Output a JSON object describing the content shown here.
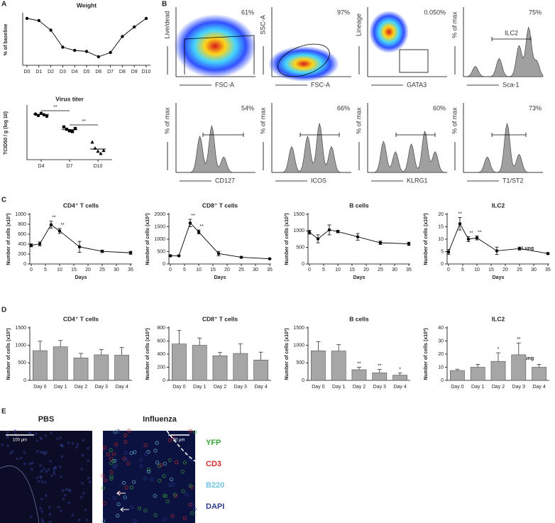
{
  "panel_labels": [
    "A",
    "B",
    "C",
    "D",
    "E"
  ],
  "side_labels": [
    "Lung",
    "Lung"
  ],
  "flow_plots": [
    {
      "y_label": "Live/dead",
      "x_label": "FSC-A",
      "percent": "61%"
    },
    {
      "y_label": "SSC-A",
      "x_label": "FSC-A",
      "percent": "97%"
    },
    {
      "y_label": "Lineage",
      "x_label": "GATA3",
      "percent": "0.050%"
    },
    {
      "y_label": "% of max",
      "x_label": "Sca-1",
      "percent": "75%",
      "gate": "ILC2"
    },
    {
      "y_label": "% of max",
      "x_label": "CD127",
      "percent": "54%"
    },
    {
      "y_label": "% of max",
      "x_label": "ICOS",
      "percent": "66%"
    },
    {
      "y_label": "% of max",
      "x_label": "KLRG1",
      "percent": "60%"
    },
    {
      "y_label": "% of max",
      "x_label": "T1/ST2",
      "percent": "73%"
    }
  ],
  "microscopy": {
    "titles": [
      "PBS",
      "Influenza"
    ],
    "scale_bars": [
      "100 μm",
      "50 μm"
    ],
    "channels": [
      {
        "name": "YFP",
        "color": "#3aa63a"
      },
      {
        "name": "CD3",
        "color": "#d42a2a"
      },
      {
        "name": "B220",
        "color": "#6fc3e6"
      },
      {
        "name": "DAPI",
        "color": "#2e3d8f"
      }
    ]
  },
  "chart_data": [
    {
      "type": "line",
      "title": "Weight",
      "ylabel": "% of baseline",
      "color": "#000000",
      "categories": [
        "D0",
        "D1",
        "D2",
        "D3",
        "D4",
        "D5",
        "D6",
        "D7",
        "D8",
        "D9",
        "D10"
      ],
      "values": [
        100,
        99,
        94.5,
        86.5,
        85,
        84.5,
        82,
        84,
        91.5,
        96,
        100
      ],
      "ylim": [
        78,
        102
      ]
    },
    {
      "type": "strip",
      "title": "Virus titer",
      "ylabel": "TCID50 / g (log 10)",
      "color": "#000000",
      "categories": [
        "D4",
        "D7",
        "D10"
      ],
      "markers": [
        "circle",
        "square",
        "triangle"
      ],
      "values": [
        [
          6.0,
          5.8,
          6.1,
          5.9,
          5.7
        ],
        [
          4.3,
          4.0,
          3.8,
          3.7,
          4.1
        ],
        [
          2.3,
          1.5,
          1.1,
          0.8,
          1.2
        ]
      ],
      "medians": [
        5.95,
        3.95,
        1.4
      ],
      "brackets": [
        "**",
        "**"
      ],
      "ylim": [
        0,
        7
      ]
    },
    {
      "type": "line",
      "title": "CD4⁺ T cells",
      "xlabel": "Days",
      "ylabel": "Number of cells (x10³)",
      "color": "#000000",
      "x": [
        0,
        3,
        7,
        10,
        17,
        25,
        35
      ],
      "values": [
        375,
        405,
        790,
        665,
        345,
        255,
        225
      ],
      "errors": [
        30,
        40,
        70,
        50,
        110,
        25,
        30
      ],
      "annotations": [
        null,
        null,
        "**",
        "**",
        null,
        null,
        null
      ],
      "xlim": [
        0,
        35
      ],
      "xticks": [
        0,
        5,
        10,
        15,
        20,
        25,
        30,
        35
      ],
      "ylim": [
        0,
        1000
      ],
      "yticks": [
        0,
        200,
        400,
        600,
        800,
        1000
      ]
    },
    {
      "type": "line",
      "title": "CD8⁺ T cells",
      "xlabel": "Days",
      "ylabel": "Number of cells (x10³)",
      "color": "#000000",
      "x": [
        0,
        3,
        7,
        10,
        17,
        25,
        35
      ],
      "values": [
        330,
        330,
        1650,
        1290,
        420,
        270,
        210
      ],
      "errors": [
        40,
        20,
        150,
        80,
        90,
        20,
        10
      ],
      "annotations": [
        null,
        null,
        "**",
        "**",
        null,
        null,
        null
      ],
      "xlim": [
        0,
        35
      ],
      "xticks": [
        0,
        5,
        10,
        15,
        20,
        25,
        30,
        35
      ],
      "ylim": [
        0,
        2000
      ],
      "yticks": [
        0,
        500,
        1000,
        1500,
        2000
      ]
    },
    {
      "type": "line",
      "title": "B cells",
      "xlabel": "Days",
      "ylabel": "Number of cells (x10³)",
      "color": "#000000",
      "x": [
        0,
        3,
        7,
        10,
        17,
        25,
        35
      ],
      "values": [
        960,
        760,
        1030,
        980,
        820,
        640,
        610
      ],
      "errors": [
        60,
        120,
        150,
        40,
        100,
        50,
        50
      ],
      "xlim": [
        0,
        35
      ],
      "xticks": [
        0,
        5,
        10,
        15,
        20,
        25,
        30,
        35
      ],
      "ylim": [
        0,
        1500
      ],
      "yticks": [
        0,
        500,
        1000,
        1500
      ]
    },
    {
      "type": "line",
      "title": "ILC2",
      "xlabel": "Days",
      "ylabel": "Number of cells (x10³)",
      "color": "#000000",
      "x": [
        0,
        4,
        7,
        10,
        17,
        25,
        35
      ],
      "values": [
        4.8,
        16.2,
        10,
        10.5,
        5.3,
        6.2,
        4.2
      ],
      "errors": [
        1,
        2.5,
        1,
        0.8,
        1.5,
        0.6,
        0.4
      ],
      "annotations": [
        null,
        "**",
        "**",
        "**",
        null,
        null,
        null
      ],
      "xlim": [
        0,
        35
      ],
      "xticks": [
        0,
        5,
        10,
        15,
        20,
        25,
        30,
        35
      ],
      "ylim": [
        0,
        20
      ],
      "yticks": [
        0,
        5,
        10,
        15,
        20
      ]
    },
    {
      "type": "bar",
      "title": "CD4⁺ T cells",
      "ylabel": "Number of cells (x10³)",
      "color": "#a6a6a6",
      "categories": [
        "Day 0",
        "Day 1",
        "Day 2",
        "Day 3",
        "Day 4"
      ],
      "values": [
        850,
        960,
        640,
        730,
        720
      ],
      "errors": [
        270,
        180,
        130,
        150,
        220
      ],
      "ylim": [
        0,
        1500
      ],
      "yticks": [
        0,
        500,
        1000,
        1500
      ]
    },
    {
      "type": "bar",
      "title": "CD8⁺ T cells",
      "ylabel": "Number of cells (x10³)",
      "color": "#a6a6a6",
      "categories": [
        "Day 0",
        "Day 1",
        "Day 2",
        "Day 3",
        "Day 4"
      ],
      "values": [
        555,
        535,
        375,
        410,
        310
      ],
      "errors": [
        205,
        110,
        50,
        145,
        120
      ],
      "ylim": [
        0,
        800
      ],
      "yticks": [
        0,
        200,
        400,
        600,
        800
      ]
    },
    {
      "type": "bar",
      "title": "B cells",
      "ylabel": "Number of cells (x10³)",
      "color": "#a6a6a6",
      "categories": [
        "Day 0",
        "Day 1",
        "Day 2",
        "Day 3",
        "Day 4"
      ],
      "values": [
        845,
        840,
        305,
        215,
        150
      ],
      "errors": [
        260,
        180,
        70,
        100,
        60
      ],
      "annotations": [
        null,
        null,
        "**",
        "**",
        "*"
      ],
      "ylim": [
        0,
        1500
      ],
      "yticks": [
        0,
        500,
        1000,
        1500
      ]
    },
    {
      "type": "bar",
      "title": "ILC2",
      "ylabel": "Number of cells (x10³)",
      "color": "#a6a6a6",
      "categories": [
        "Day 0",
        "Day 1",
        "Day 2",
        "Day 3",
        "Day 4"
      ],
      "values": [
        7.5,
        10,
        14.5,
        19.5,
        10
      ],
      "errors": [
        1,
        2.2,
        6.5,
        9,
        2.2
      ],
      "annotations": [
        null,
        null,
        "*",
        "**",
        null
      ],
      "ylim": [
        0,
        40
      ],
      "yticks": [
        0,
        10,
        20,
        30,
        40
      ]
    }
  ]
}
